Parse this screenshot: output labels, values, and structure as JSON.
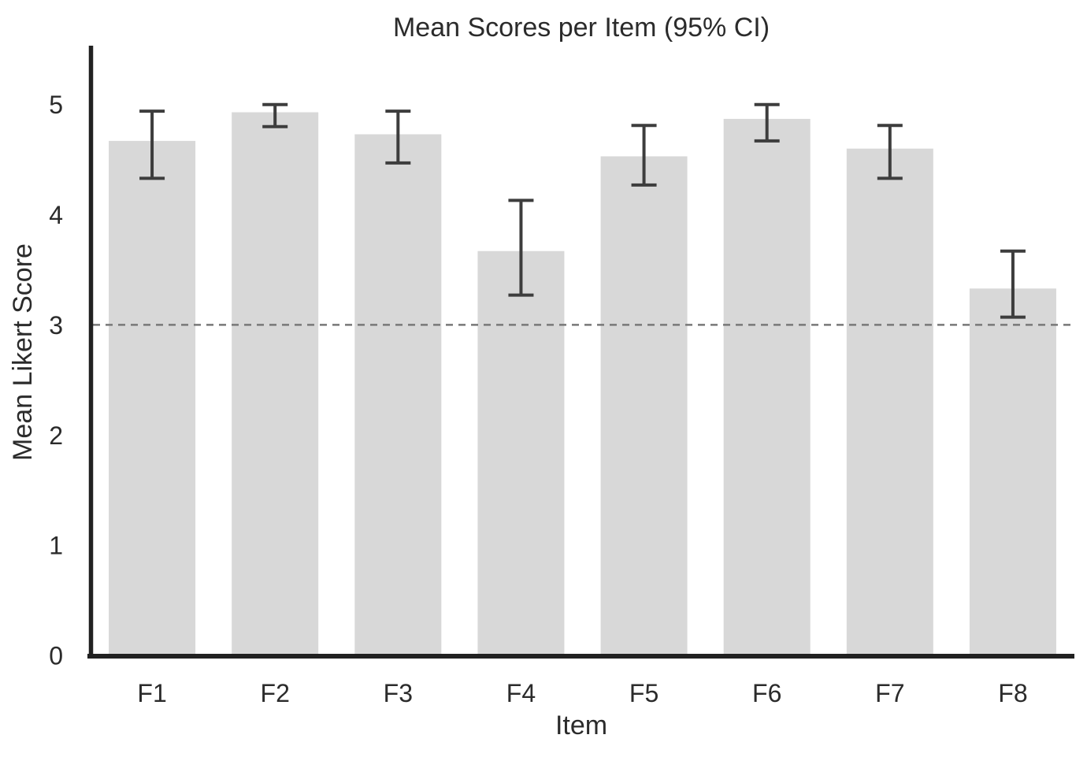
{
  "chart_data": {
    "type": "bar",
    "title": "Mean Scores per Item (95% CI)",
    "xlabel": "Item",
    "ylabel": "Mean Likert Score",
    "categories": [
      "F1",
      "F2",
      "F3",
      "F4",
      "F5",
      "F6",
      "F7",
      "F8"
    ],
    "series": [
      {
        "name": "Mean Likert Score",
        "values": [
          4.67,
          4.93,
          4.73,
          3.67,
          4.53,
          4.87,
          4.6,
          3.33
        ]
      }
    ],
    "error_bars": {
      "label": "95% CI",
      "low": [
        4.33,
        4.8,
        4.47,
        3.27,
        4.27,
        4.67,
        4.33,
        3.07
      ],
      "high": [
        4.94,
        5.0,
        4.94,
        4.13,
        4.81,
        5.0,
        4.81,
        3.67
      ]
    },
    "yticks": [
      0,
      1,
      2,
      3,
      4,
      5
    ],
    "ylim": [
      0,
      5.53
    ],
    "reference_line": {
      "y": 3,
      "style": "dashed"
    },
    "grid": false,
    "legend": "none",
    "colors": {
      "bar_fill": "#d8d8d8",
      "error_bar": "#3d3d3d",
      "axis_line": "#212121",
      "reference_line": "#787878",
      "text": "#2b2b2b",
      "background": "#ffffff"
    }
  }
}
